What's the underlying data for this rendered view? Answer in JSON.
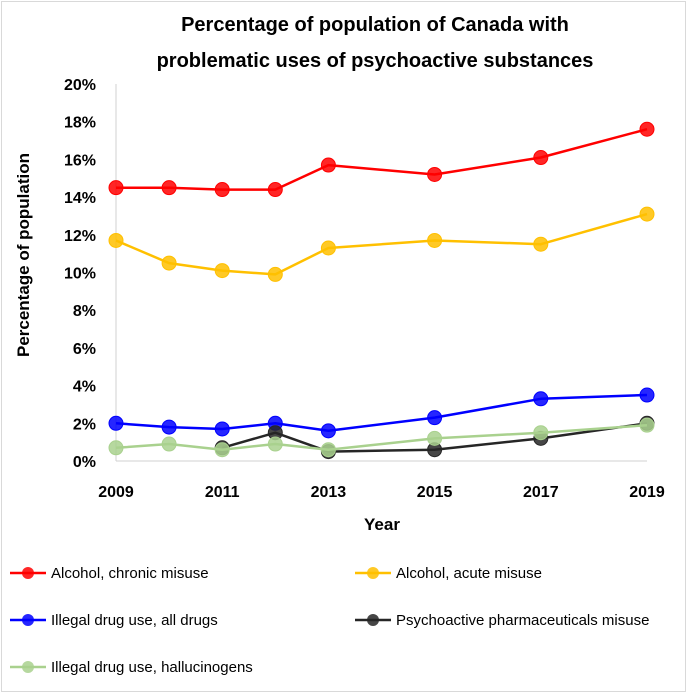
{
  "chart_data": {
    "type": "line",
    "title_lines": [
      "Percentage of population of Canada with",
      "problematic uses of psychoactive substances"
    ],
    "xlabel": "Year",
    "ylabel": "Percentage of population",
    "xlim": [
      2009,
      2019
    ],
    "ylim": [
      0,
      20
    ],
    "x_ticks": [
      "2009",
      "2011",
      "2013",
      "2015",
      "2017",
      "2019"
    ],
    "y_ticks": [
      "0%",
      "2%",
      "4%",
      "6%",
      "8%",
      "10%",
      "12%",
      "14%",
      "16%",
      "18%",
      "20%"
    ],
    "grid": false,
    "legend_position": "bottom",
    "series": [
      {
        "name": "Alcohol, chronic misuse",
        "color": "#ff0000",
        "points": [
          [
            2009,
            14.5
          ],
          [
            2010,
            14.5
          ],
          [
            2011,
            14.4
          ],
          [
            2012,
            14.4
          ],
          [
            2013,
            15.7
          ],
          [
            2015,
            15.2
          ],
          [
            2017,
            16.1
          ],
          [
            2019,
            17.6
          ]
        ]
      },
      {
        "name": "Alcohol, acute misuse",
        "color": "#ffc000",
        "points": [
          [
            2009,
            11.7
          ],
          [
            2010,
            10.5
          ],
          [
            2011,
            10.1
          ],
          [
            2012,
            9.9
          ],
          [
            2013,
            11.3
          ],
          [
            2015,
            11.7
          ],
          [
            2017,
            11.5
          ],
          [
            2019,
            13.1
          ]
        ]
      },
      {
        "name": "Illegal drug use, all drugs",
        "color": "#0000ff",
        "points": [
          [
            2009,
            2.0
          ],
          [
            2010,
            1.8
          ],
          [
            2011,
            1.7
          ],
          [
            2012,
            2.0
          ],
          [
            2013,
            1.6
          ],
          [
            2015,
            2.3
          ],
          [
            2017,
            3.3
          ],
          [
            2019,
            3.5
          ]
        ]
      },
      {
        "name": "Psychoactive pharmaceuticals misuse",
        "color": "#262626",
        "points": [
          [
            2011,
            0.7
          ],
          [
            2012,
            1.5
          ],
          [
            2013,
            0.5
          ],
          [
            2015,
            0.6
          ],
          [
            2017,
            1.2
          ],
          [
            2019,
            2.0
          ]
        ]
      },
      {
        "name": "Illegal drug use, hallucinogens",
        "color": "#a9d18e",
        "points": [
          [
            2009,
            0.7
          ],
          [
            2010,
            0.9
          ],
          [
            2011,
            0.6
          ],
          [
            2012,
            0.9
          ],
          [
            2013,
            0.6
          ],
          [
            2015,
            1.2
          ],
          [
            2017,
            1.5
          ],
          [
            2019,
            1.9
          ]
        ]
      }
    ]
  }
}
